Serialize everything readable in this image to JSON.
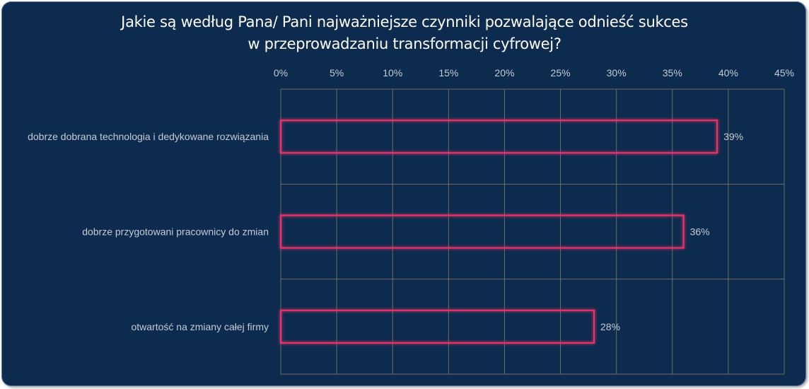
{
  "colors": {
    "background": "#0c2b4e",
    "bar_outline": "#e8326a",
    "gridline": "#6e6e66",
    "text": "#c4ccd6",
    "title": "#ffffff"
  },
  "chart_data": {
    "type": "bar",
    "orientation": "horizontal",
    "title_lines": [
      "Jakie są według Pana/ Pani najważniejsze czynniki pozwalające odnieść sukces",
      "w przeprowadzaniu transformacji cyfrowej?"
    ],
    "categories": [
      "dobrze dobrana technologia i dedykowane rozwiązania",
      "dobrze przygotowani pracownicy do zmian",
      "otwartość na zmiany całej firmy"
    ],
    "values": [
      39,
      36,
      28
    ],
    "value_labels": [
      "39%",
      "36%",
      "28%"
    ],
    "xlim": [
      0,
      45
    ],
    "x_ticks": [
      "0%",
      "5%",
      "10%",
      "15%",
      "20%",
      "25%",
      "30%",
      "35%",
      "40%",
      "45%"
    ],
    "x_axis_position": "top",
    "grid": true,
    "legend": "none"
  }
}
